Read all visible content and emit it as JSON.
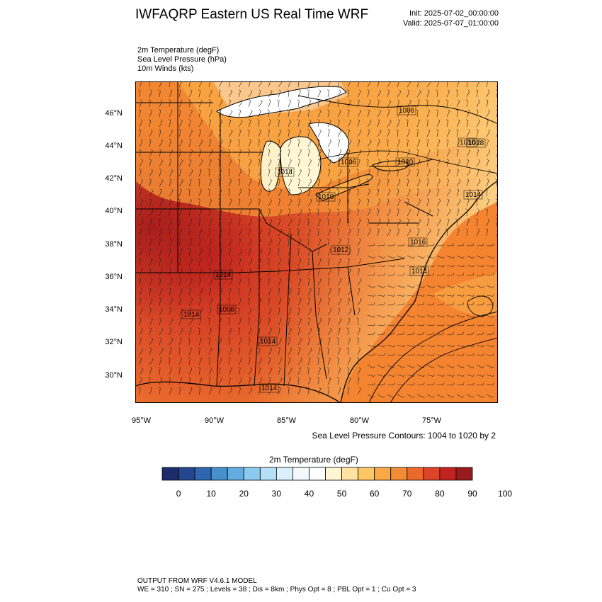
{
  "header": {
    "title": "IWFAQRP Eastern US Real Time WRF",
    "init": "Init: 2025-07-02_00:00:00",
    "valid": "Valid: 2025-07-07_01:00:00"
  },
  "fields": [
    "2m Temperature   (degF)",
    "Sea Level Pressure   (hPa)",
    "10m Winds   (kts)"
  ],
  "map": {
    "lat_ticks": [
      "46°N",
      "44°N",
      "42°N",
      "40°N",
      "38°N",
      "36°N",
      "34°N",
      "32°N",
      "30°N"
    ],
    "lon_ticks": [
      "95°W",
      "90°W",
      "85°W",
      "80°W",
      "75°W"
    ],
    "pressure_labels": [
      "1006",
      "1006",
      "1010",
      "1010",
      "1014",
      "1010",
      "1012",
      "1014",
      "1014",
      "1014",
      "1014",
      "1014",
      "1014",
      "1016",
      "1018",
      "1008"
    ],
    "lake_color": "#ffffff",
    "coast_color": "#000000"
  },
  "slp_note": "Sea Level Pressure Contours: 1004 to 1020 by 2",
  "colorbar": {
    "title": "2m Temperature  (degF)",
    "colors": [
      "#1d2d6b",
      "#22468f",
      "#2e67b0",
      "#4790cc",
      "#63acdf",
      "#8ccbef",
      "#b4e0f7",
      "#d9effa",
      "#f3f8fc",
      "#ffffff",
      "#fff7d3",
      "#ffe3a2",
      "#ffc864",
      "#fba946",
      "#f28b34",
      "#ea6a2c",
      "#db4427",
      "#c12420",
      "#971a1c"
    ],
    "labels": [
      "0",
      "10",
      "20",
      "30",
      "40",
      "50",
      "60",
      "70",
      "80",
      "90",
      "100"
    ]
  },
  "footer": {
    "line1": "OUTPUT FROM WRF V4.6.1 MODEL",
    "line2": "WE = 310 ; SN = 275 ; Levels = 38 ; Dis = 8km ; Phys Opt = 8 ; PBL Opt = 1 ; Cu Opt = 3"
  }
}
